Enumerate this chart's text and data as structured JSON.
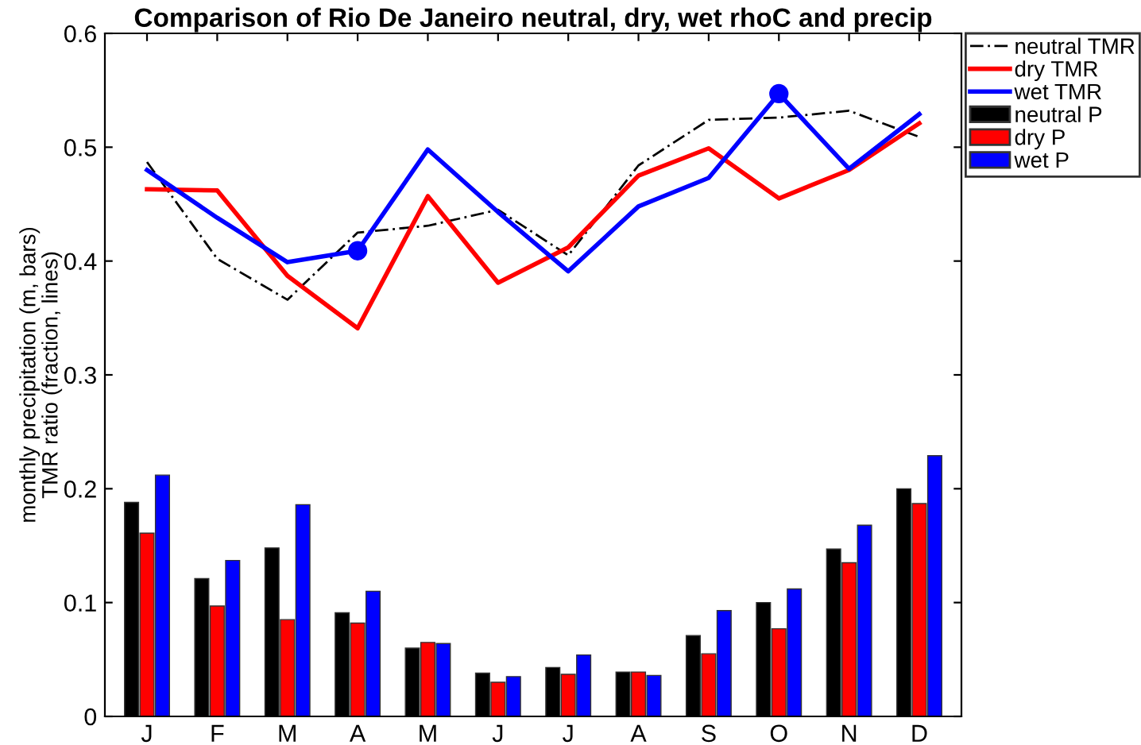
{
  "chart_data": {
    "type": "bar",
    "title": "Comparison of Rio De Janeiro neutral, dry, wet rhoC and precip",
    "ylabel": "monthly precipitation (m, bars)\nTMR ratio (fraction, lines)",
    "categories": [
      "J",
      "F",
      "M",
      "A",
      "M",
      "J",
      "J",
      "A",
      "S",
      "O",
      "N",
      "D"
    ],
    "series": [
      {
        "name": "neutral TMR",
        "type": "line",
        "color": "#000000",
        "line_style": "dashed",
        "values": [
          0.487,
          0.402,
          0.366,
          0.425,
          0.431,
          0.445,
          0.405,
          0.484,
          0.524,
          0.526,
          0.532,
          0.509
        ]
      },
      {
        "name": "dry TMR",
        "type": "line",
        "color": "#ff0000",
        "values": [
          0.463,
          0.462,
          0.387,
          0.341,
          0.457,
          0.381,
          0.412,
          0.475,
          0.499,
          0.455,
          0.48,
          0.521
        ]
      },
      {
        "name": "wet TMR",
        "type": "line",
        "color": "#0000ff",
        "values": [
          0.48,
          0.438,
          0.399,
          0.409,
          0.498,
          0.443,
          0.391,
          0.448,
          0.473,
          0.547,
          0.481,
          0.529
        ]
      },
      {
        "type": "scatter",
        "color": "#0000ff",
        "marker": "circle",
        "values": [
          null,
          null,
          null,
          0.409,
          null,
          null,
          null,
          null,
          null,
          0.547,
          null,
          null
        ]
      },
      {
        "name": "neutral P",
        "color": "#000000",
        "values": [
          0.188,
          0.121,
          0.148,
          0.091,
          0.06,
          0.038,
          0.043,
          0.039,
          0.071,
          0.1,
          0.147,
          0.2
        ]
      },
      {
        "name": "dry P",
        "color": "#ff0000",
        "values": [
          0.161,
          0.097,
          0.085,
          0.082,
          0.065,
          0.03,
          0.037,
          0.039,
          0.055,
          0.077,
          0.135,
          0.187
        ]
      },
      {
        "name": "wet P",
        "color": "#0000ff",
        "values": [
          0.212,
          0.137,
          0.186,
          0.11,
          0.064,
          0.035,
          0.054,
          0.036,
          0.093,
          0.112,
          0.168,
          0.229
        ]
      }
    ],
    "ylim": [
      0,
      0.6
    ],
    "yticks": [
      0,
      0.1,
      0.2,
      0.3,
      0.4,
      0.5,
      0.6
    ],
    "grid": false,
    "legend": "top right"
  }
}
